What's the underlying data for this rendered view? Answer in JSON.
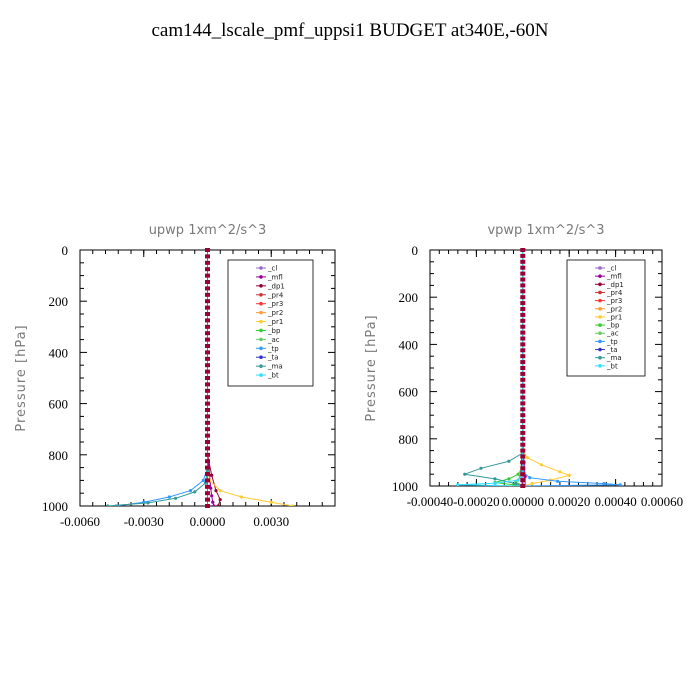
{
  "title": "cam144_lscale_pmf_uppsi1  BUDGET at340E,-60N",
  "legend_entries": [
    {
      "label": "_cl",
      "color": "#9966cc"
    },
    {
      "label": "_mfl",
      "color": "#990099"
    },
    {
      "label": "_dp1",
      "color": "#990033"
    },
    {
      "label": "_pr4",
      "color": "#cc3333"
    },
    {
      "label": "_pr3",
      "color": "#ff3333"
    },
    {
      "label": "_pr2",
      "color": "#ff9933"
    },
    {
      "label": "_pr1",
      "color": "#ffcc33"
    },
    {
      "label": "_bp",
      "color": "#33cc33"
    },
    {
      "label": "_ac",
      "color": "#66cc66"
    },
    {
      "label": "_tp",
      "color": "#3399ff"
    },
    {
      "label": "_ta",
      "color": "#3333cc"
    },
    {
      "label": "_ma",
      "color": "#339999"
    },
    {
      "label": "_bt",
      "color": "#33ddff"
    }
  ],
  "chart_data": [
    {
      "type": "line",
      "title": "upwp   1xm^2/s^3",
      "ylabel": "Pressure [hPa]",
      "xlim": [
        -0.006,
        0.006
      ],
      "ylim": [
        1000,
        0
      ],
      "x_ticks": [
        "-0.0060",
        "-0.0030",
        "0.0000",
        "0.0030"
      ],
      "x_tick_values": [
        -0.006,
        -0.003,
        0.0,
        0.003
      ],
      "y_ticks": [
        "0",
        "200",
        "400",
        "600",
        "800",
        "1000"
      ],
      "y_tick_values": [
        0,
        200,
        400,
        600,
        800,
        1000
      ],
      "legend_position": "top-right",
      "series": [
        {
          "name": "_cl",
          "x": [
            0,
            0,
            0,
            0,
            0,
            0,
            0,
            0,
            0,
            0,
            0
          ],
          "y": [
            0,
            100,
            200,
            300,
            400,
            500,
            600,
            700,
            800,
            900,
            1000
          ]
        },
        {
          "name": "_mfl",
          "x": [
            0,
            0,
            0,
            0,
            0,
            0.0001,
            0.00015,
            0.0002,
            0.00025,
            0.0003
          ],
          "y": [
            0,
            200,
            400,
            600,
            800,
            880,
            930,
            960,
            985,
            1000
          ]
        },
        {
          "name": "_dp1",
          "x": [
            0,
            0,
            0,
            0,
            0,
            0.0002,
            0.0004,
            0.0006,
            0.0005
          ],
          "y": [
            0,
            200,
            400,
            600,
            800,
            880,
            940,
            975,
            1000
          ]
        },
        {
          "name": "_pr1",
          "x": [
            0,
            0,
            0.0001,
            0.0006,
            0.0016,
            0.003,
            0.004
          ],
          "y": [
            0,
            850,
            900,
            940,
            965,
            985,
            1000
          ]
        },
        {
          "name": "_tp",
          "x": [
            0,
            0,
            -0.0002,
            -0.0008,
            -0.0018,
            -0.003,
            -0.0043
          ],
          "y": [
            0,
            850,
            900,
            940,
            965,
            985,
            1000
          ]
        },
        {
          "name": "_ma",
          "x": [
            0,
            0,
            -0.0001,
            -0.0006,
            -0.0015,
            -0.0028,
            -0.0047
          ],
          "y": [
            0,
            860,
            910,
            945,
            970,
            988,
            1000
          ]
        }
      ]
    },
    {
      "type": "line",
      "title": "vpwp   1xm^2/s^3",
      "ylabel": "Pressure [hPa]",
      "xlim": [
        -0.0004,
        0.0006
      ],
      "ylim": [
        1000,
        0
      ],
      "x_ticks": [
        "-0.00040",
        "-0.00020",
        "0.00000",
        "0.00020",
        "0.00040",
        "0.00060"
      ],
      "x_tick_values": [
        -0.0004,
        -0.0002,
        0.0,
        0.0002,
        0.0004,
        0.0006
      ],
      "y_ticks": [
        "0",
        "200",
        "400",
        "600",
        "800",
        "1000"
      ],
      "y_tick_values": [
        0,
        200,
        400,
        600,
        800,
        1000
      ],
      "legend_position": "top-right",
      "series": [
        {
          "name": "_cl",
          "x": [
            0,
            0,
            0,
            0,
            0,
            0,
            0,
            0,
            0,
            0,
            0
          ],
          "y": [
            0,
            100,
            200,
            300,
            400,
            500,
            600,
            700,
            800,
            900,
            1000
          ]
        },
        {
          "name": "_mfl",
          "x": [
            0,
            0,
            0,
            0,
            0,
            5e-06,
            1e-05,
            1e-05
          ],
          "y": [
            0,
            200,
            400,
            600,
            800,
            900,
            960,
            1000
          ]
        },
        {
          "name": "_dp1",
          "x": [
            0,
            0,
            0,
            0,
            0,
            -5e-06,
            -1e-05,
            0.0
          ],
          "y": [
            0,
            200,
            400,
            600,
            800,
            900,
            960,
            1000
          ]
        },
        {
          "name": "_pr1",
          "x": [
            0,
            0,
            2e-05,
            8e-05,
            0.00016,
            0.0002,
            0.00012,
            4e-05,
            0.0
          ],
          "y": [
            0,
            850,
            880,
            910,
            940,
            955,
            975,
            990,
            1000
          ]
        },
        {
          "name": "_bp",
          "x": [
            0,
            0,
            -2e-05,
            -6e-05,
            -0.00012,
            -4e-05,
            0.0
          ],
          "y": [
            0,
            920,
            950,
            970,
            985,
            995,
            1000
          ]
        },
        {
          "name": "_ac",
          "x": [
            0,
            0,
            -1e-05,
            -3e-05,
            -2e-05,
            0.0
          ],
          "y": [
            0,
            930,
            960,
            980,
            993,
            1000
          ]
        },
        {
          "name": "_tp",
          "x": [
            0,
            0,
            3e-05,
            0.00015,
            0.00035,
            0.00042,
            0.0
          ],
          "y": [
            0,
            940,
            965,
            980,
            990,
            995,
            1000
          ]
        },
        {
          "name": "_ma",
          "x": [
            0,
            0,
            -6e-05,
            -0.00018,
            -0.00025,
            -0.00012,
            -3e-05,
            0.0
          ],
          "y": [
            0,
            860,
            895,
            925,
            950,
            970,
            990,
            1000
          ]
        },
        {
          "name": "_bt",
          "x": [
            0,
            0,
            -2e-05,
            -0.00012,
            -0.00028,
            -0.00012,
            0.0
          ],
          "y": [
            0,
            950,
            975,
            988,
            995,
            998,
            1000
          ]
        }
      ]
    }
  ]
}
